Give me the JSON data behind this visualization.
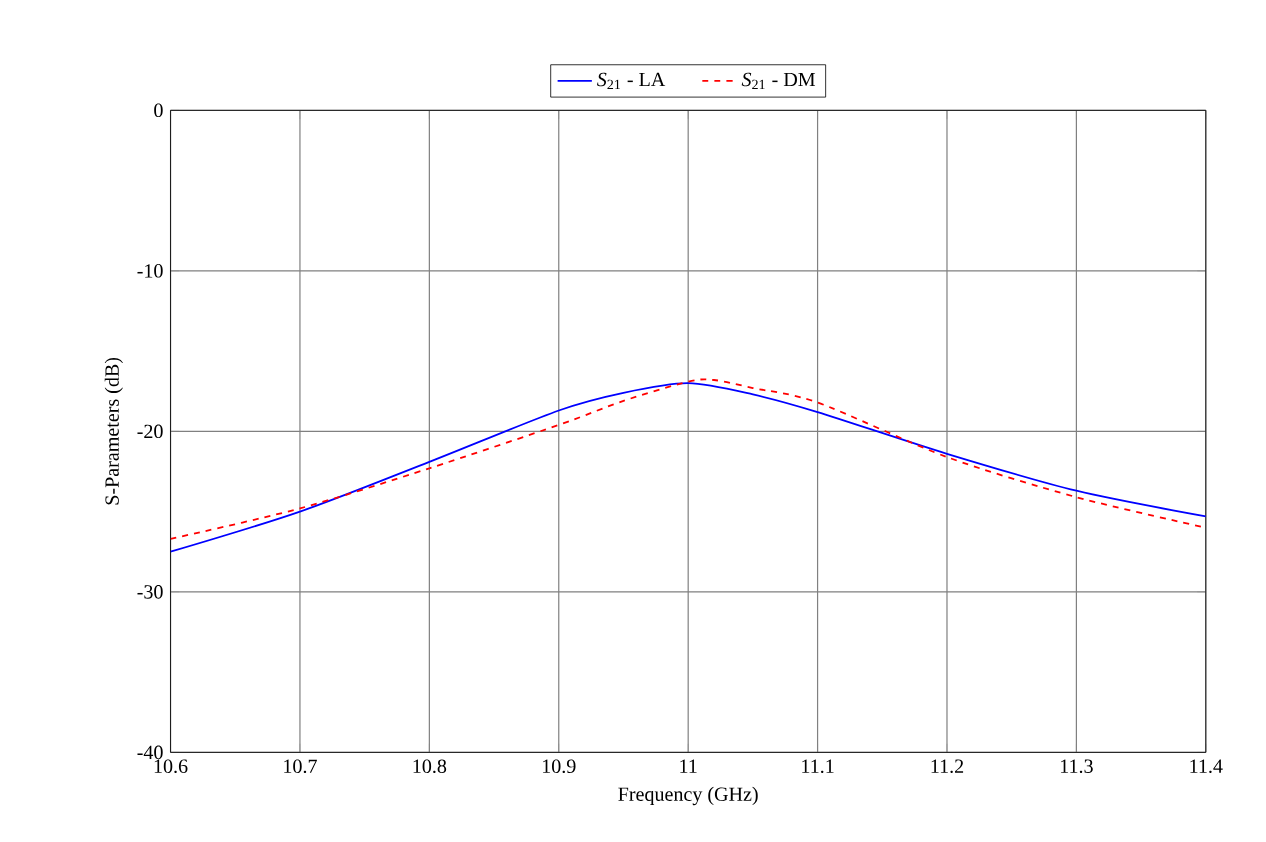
{
  "chart_data": {
    "type": "line",
    "xlabel": "Frequency (GHz)",
    "ylabel": "S-Parameters (dB)",
    "xlim": [
      10.6,
      11.4
    ],
    "xticks": [
      10.6,
      10.7,
      10.8,
      10.9,
      11,
      11.1,
      11.2,
      11.3,
      11.4
    ],
    "ylim": [
      -40,
      0
    ],
    "yticks": [
      -40,
      -30,
      -20,
      -10,
      0
    ],
    "grid": true,
    "legend": "top",
    "marker": "none",
    "series": [
      {
        "name": "*S*$_{21}$ - LA",
        "color": "#0000ff",
        "line_style": "solid",
        "x": [
          10.6,
          10.7,
          10.8,
          10.9,
          10.95,
          11,
          11.05,
          11.1,
          11.2,
          11.3,
          11.4
        ],
        "values": [
          -27.5,
          -25.0,
          -21.9,
          -18.7,
          -17.6,
          -17.0,
          -17.7,
          -18.8,
          -21.4,
          -23.7,
          -25.3
        ]
      },
      {
        "name": "*S*$_{21}$ - DM",
        "color": "#ff0000",
        "line_style": "dashed",
        "x": [
          10.6,
          10.7,
          10.8,
          10.9,
          10.95,
          11,
          11.02,
          11.05,
          11.1,
          11.2,
          11.3,
          11.4
        ],
        "values": [
          -26.7,
          -24.8,
          -22.3,
          -19.6,
          -18.1,
          -16.9,
          -16.8,
          -17.3,
          -18.2,
          -21.6,
          -24.1,
          -26.0
        ]
      }
    ]
  }
}
